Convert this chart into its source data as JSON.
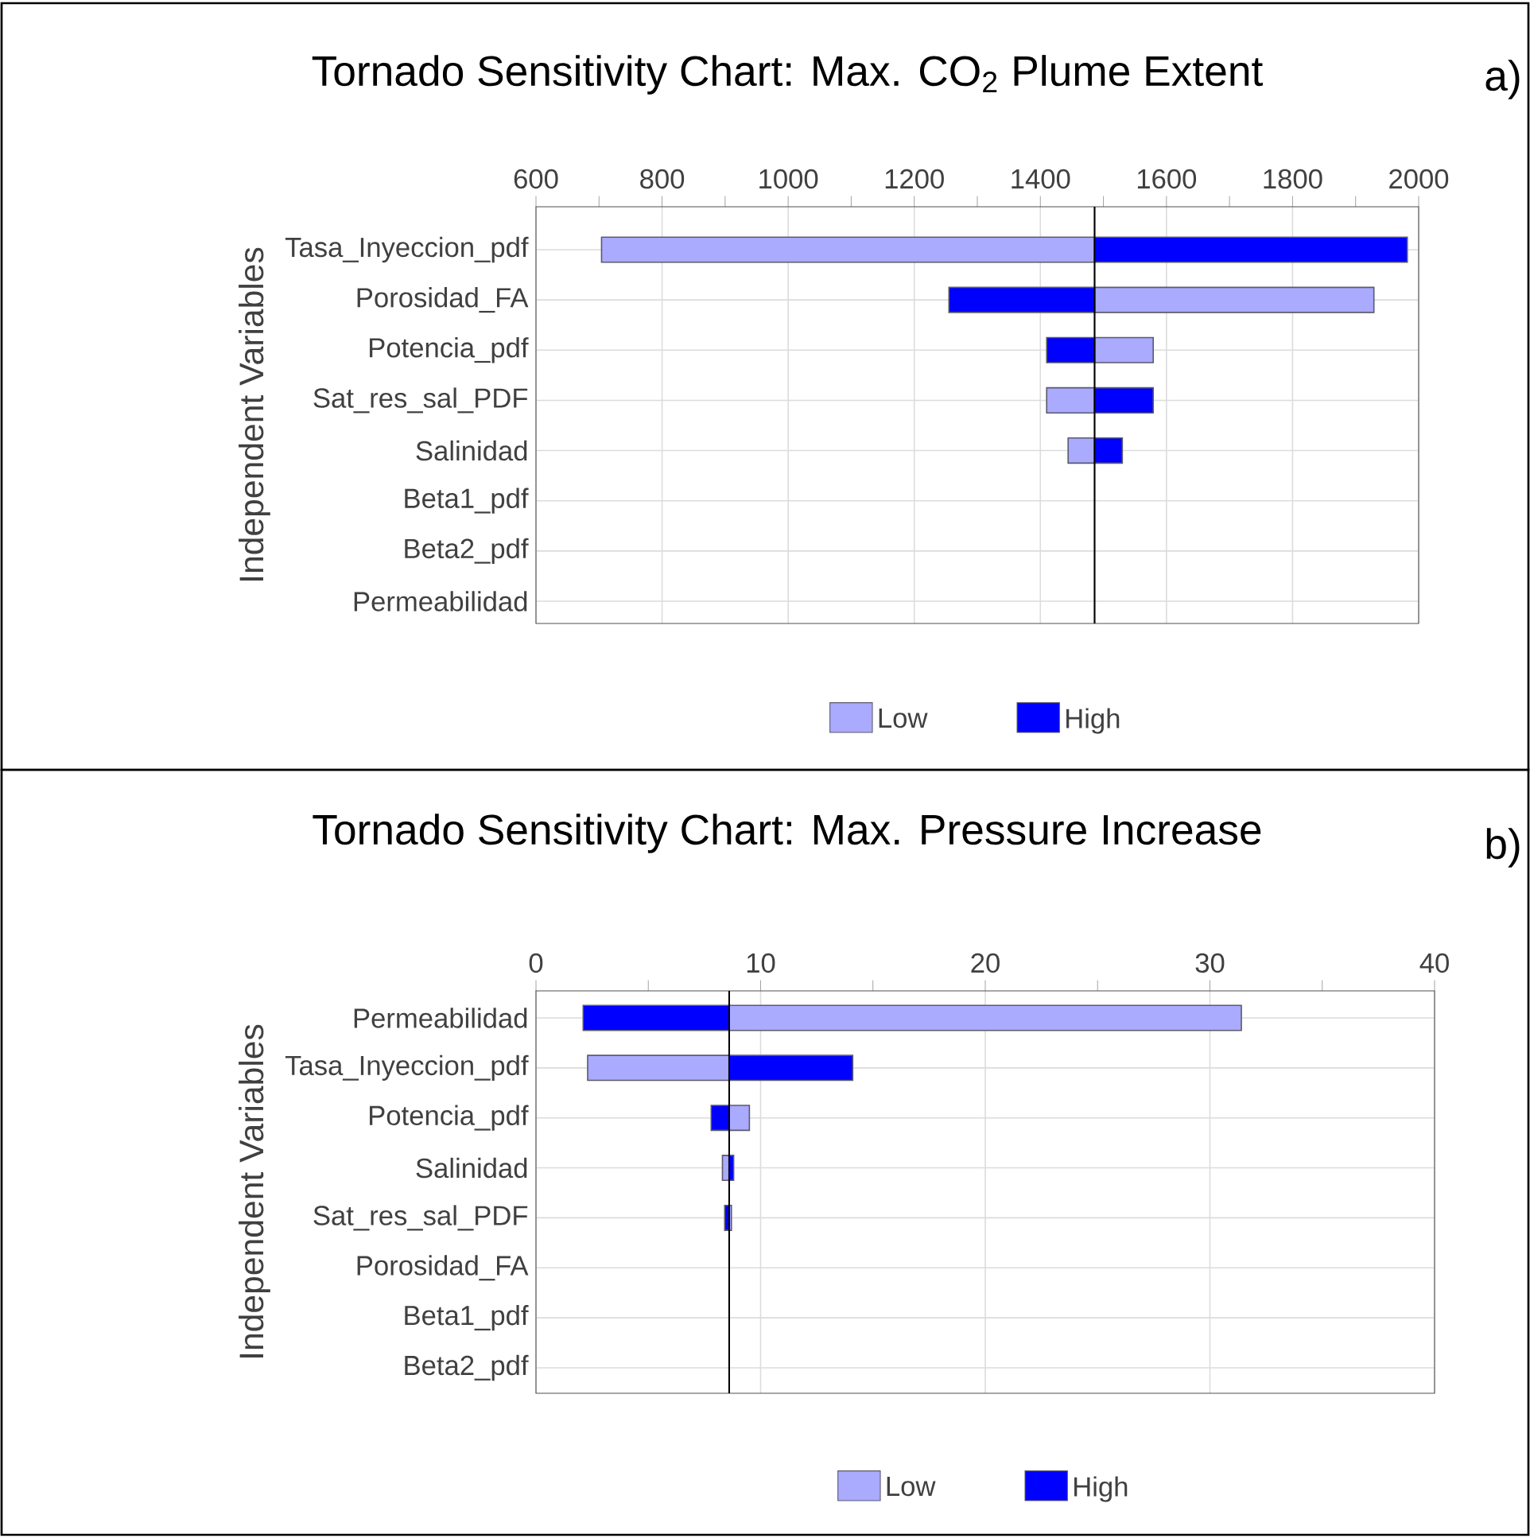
{
  "chart_data": [
    {
      "type": "bar",
      "orientation": "horizontal",
      "title": "Tornado Sensitivity Chart: Max. CO$_{2}$ Plume Extent",
      "ylabel": "Independent Variables",
      "annotations": [
        "a)"
      ],
      "categories": [
        "Tasa_Inyeccion_pdf",
        "Porosidad_FA",
        "Potencia_pdf",
        "Sat_res_sal_PDF",
        "Salinidad",
        "Beta1_pdf",
        "Beta2_pdf",
        "Permeabilidad"
      ],
      "series": [
        {
          "name": "Low",
          "color": "#aaaaff",
          "base": [
            1486,
            1486,
            1486,
            1486,
            1486,
            null,
            null,
            null
          ],
          "values": [
            -782,
            443,
            93,
            -76,
            -42,
            null,
            null,
            null
          ]
        },
        {
          "name": "High",
          "color": "#0000ff",
          "base": [
            1486,
            1486,
            1486,
            1486,
            1486,
            null,
            null,
            null
          ],
          "values": [
            496,
            -231,
            -76,
            93,
            44,
            null,
            null,
            null
          ]
        }
      ],
      "xlim": [
        600,
        2000
      ],
      "xticks": [
        600,
        {
          "value": 700,
          "label": null
        },
        800,
        {
          "value": 900,
          "label": null
        },
        1000,
        {
          "value": 1100,
          "label": null
        },
        1200,
        {
          "value": 1300,
          "label": null
        },
        1400,
        {
          "value": 1500,
          "label": null
        },
        1600,
        {
          "value": 1700,
          "label": null
        },
        1800,
        {
          "value": 1900,
          "label": null
        },
        2000
      ],
      "ref_lines": [
        {
          "axis": "x",
          "value": 1486
        }
      ],
      "grid": true,
      "legend": "bottom"
    },
    {
      "type": "bar",
      "orientation": "horizontal",
      "title": "Tornado Sensitivity Chart: Max. Pressure Increase",
      "ylabel": "Independent Variables",
      "annotations": [
        "b)"
      ],
      "categories": [
        "Permeabilidad",
        "Tasa_Inyeccion_pdf",
        "Potencia_pdf",
        "Salinidad",
        "Sat_res_sal_PDF",
        "Porosidad_FA",
        "Beta1_pdf",
        "Beta2_pdf"
      ],
      "series": [
        {
          "name": "Low",
          "color": "#aaaaff",
          "base": [
            8.6,
            8.6,
            8.6,
            8.6,
            8.6,
            null,
            null,
            null
          ],
          "values": [
            22.8,
            -6.3,
            0.9,
            -0.3,
            0.1,
            null,
            null,
            null
          ]
        },
        {
          "name": "High",
          "color": "#0000ff",
          "base": [
            8.6,
            8.6,
            8.6,
            8.6,
            8.6,
            null,
            null,
            null
          ],
          "values": [
            -6.5,
            5.5,
            -0.8,
            0.2,
            -0.2,
            null,
            null,
            null
          ]
        }
      ],
      "xlim": [
        0,
        40
      ],
      "xticks": [
        0,
        {
          "value": 5,
          "label": null
        },
        10,
        {
          "value": 15,
          "label": null
        },
        20,
        {
          "value": 25,
          "label": null
        },
        30,
        {
          "value": 35,
          "label": null
        },
        40
      ],
      "ref_lines": [
        {
          "axis": "x",
          "value": 8.6
        }
      ],
      "grid": true,
      "legend": "bottom"
    }
  ]
}
